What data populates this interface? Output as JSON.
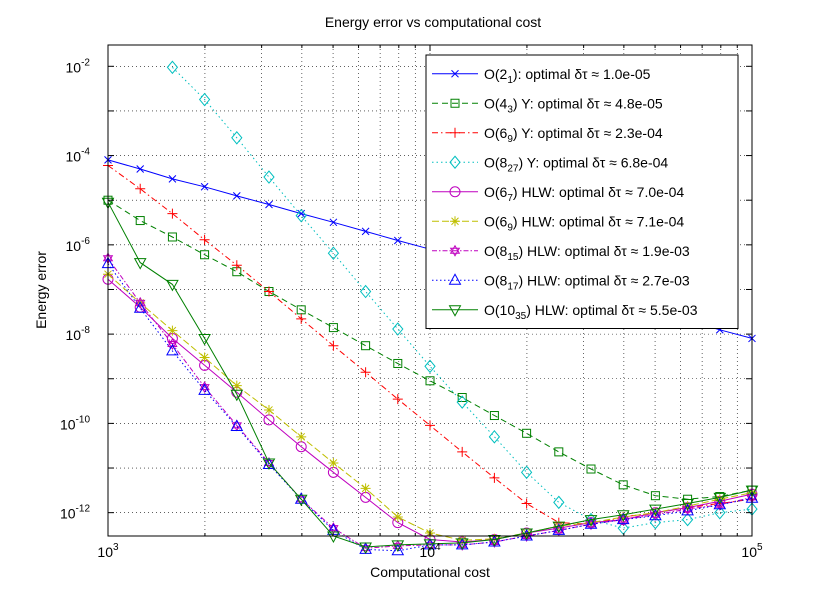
{
  "chart_data": {
    "type": "line",
    "title": "Energy error vs computational cost",
    "xlabel": "Computational cost",
    "ylabel": "Energy error",
    "xscale": "log",
    "yscale": "log",
    "xlim": [
      1000,
      100000
    ],
    "ylim": [
      3e-13,
      0.03
    ],
    "grid": true,
    "legend_position": "top-right",
    "x_ticks": [
      {
        "value": 1000,
        "base": "10",
        "exp": "3"
      },
      {
        "value": 10000,
        "base": "10",
        "exp": "4"
      },
      {
        "value": 100000,
        "base": "10",
        "exp": "5"
      }
    ],
    "y_ticks": [
      {
        "value": 1e-12,
        "base": "10",
        "exp": "-12"
      },
      {
        "value": 1e-10,
        "base": "10",
        "exp": "-10"
      },
      {
        "value": 1e-08,
        "base": "10",
        "exp": "-8"
      },
      {
        "value": 1e-06,
        "base": "10",
        "exp": "-6"
      },
      {
        "value": 0.0001,
        "base": "10",
        "exp": "-4"
      },
      {
        "value": 0.01,
        "base": "10",
        "exp": "-2"
      }
    ],
    "x": [
      1000,
      1259,
      1585,
      1995,
      2512,
      3162,
      3981,
      5012,
      6310,
      7943,
      10000,
      12589,
      15849,
      19953,
      25119,
      31623,
      39811,
      50119,
      63096,
      79433,
      100000
    ],
    "series": [
      {
        "name": "O(2_1)",
        "method": "O(2",
        "sub": "1",
        "suffix": ")",
        "legend_rest": ": optimal δτ ≈ 1.0e-05",
        "color": "#0000ff",
        "dash": "",
        "marker": "x",
        "values": [
          8e-05,
          5e-05,
          3e-05,
          2e-05,
          1.25e-05,
          8e-06,
          5e-06,
          3.2e-06,
          2e-06,
          1.25e-06,
          8e-07,
          5e-07,
          3.2e-07,
          2e-07,
          1.25e-07,
          8e-08,
          5e-08,
          3.2e-08,
          2e-08,
          1.25e-08,
          8e-09
        ]
      },
      {
        "name": "O(4_3) Y",
        "method": "O(4",
        "sub": "3",
        "suffix": ") Y",
        "legend_rest": ": optimal δτ ≈ 4.8e-05",
        "color": "#008000",
        "dash": "6,4",
        "marker": "square",
        "values": [
          1e-05,
          3.5e-06,
          1.5e-06,
          6e-07,
          2.5e-07,
          9e-08,
          3.5e-08,
          1.4e-08,
          5.5e-09,
          2.2e-09,
          9e-10,
          3.8e-10,
          1.5e-10,
          6e-11,
          2.3e-11,
          9.5e-12,
          4.2e-12,
          2.4e-12,
          2e-12,
          2.3e-12,
          3.2e-12
        ]
      },
      {
        "name": "O(6_9) Y",
        "method": "O(6",
        "sub": "9",
        "suffix": ") Y",
        "legend_rest": ": optimal δτ ≈ 2.3e-04",
        "color": "#ff0000",
        "dash": "6,3,1.5,3",
        "marker": "plus",
        "values": [
          6e-05,
          1.8e-05,
          5e-06,
          1.3e-06,
          3.5e-07,
          9e-08,
          2.2e-08,
          5.5e-09,
          1.4e-09,
          3.5e-10,
          9e-11,
          2.3e-11,
          6e-12,
          1.6e-12,
          6e-13,
          5.5e-13,
          8e-13,
          1e-12,
          1.3e-12,
          1.6e-12,
          2e-12
        ]
      },
      {
        "name": "O(8_27) Y",
        "method": "O(8",
        "sub": "27",
        "suffix": ") Y",
        "legend_rest": ": optimal δτ ≈ 6.8e-04",
        "color": "#00bfbf",
        "dash": "1.5,3",
        "marker": "diamond",
        "values": [
          null,
          null,
          0.0095,
          0.0018,
          0.00025,
          3.3e-05,
          4.5e-06,
          6.5e-07,
          9e-08,
          1.3e-08,
          1.9e-09,
          3e-10,
          5e-11,
          8e-12,
          1.7e-12,
          7e-13,
          4.5e-13,
          6e-13,
          7e-13,
          1e-12,
          1.2e-12
        ]
      },
      {
        "name": "O(6_7) HLW",
        "method": "O(6",
        "sub": "7",
        "suffix": ") HLW",
        "legend_rest": ": optimal δτ ≈ 7.0e-04",
        "color": "#bf00bf",
        "dash": "",
        "marker": "circle",
        "values": [
          1.7e-07,
          4e-08,
          8e-09,
          2e-09,
          5e-10,
          1.2e-10,
          3e-11,
          8e-12,
          2.2e-12,
          6e-13,
          2.5e-13,
          2.2e-13,
          2.5e-13,
          3.5e-13,
          4.5e-13,
          6e-13,
          7e-13,
          1e-12,
          1.3e-12,
          1.8e-12,
          2.6e-12
        ]
      },
      {
        "name": "O(6_9) HLW",
        "method": "O(6",
        "sub": "9",
        "suffix": ") HLW",
        "legend_rest": ": optimal δτ ≈ 7.1e-04",
        "color": "#bfbf00",
        "dash": "7,3",
        "marker": "star",
        "values": [
          2.2e-07,
          5e-08,
          1.2e-08,
          3e-09,
          7e-10,
          2e-10,
          5e-11,
          1.3e-11,
          3.5e-12,
          8e-13,
          3.5e-13,
          2.4e-13,
          2.6e-13,
          3.5e-13,
          5e-13,
          6e-13,
          8e-13,
          1e-12,
          1.4e-12,
          2e-12,
          2.8e-12
        ]
      },
      {
        "name": "O(8_15) HLW",
        "method": "O(8",
        "sub": "15",
        "suffix": ") HLW",
        "legend_rest": ": optimal δτ ≈ 1.9e-03",
        "color": "#bf00bf",
        "dash": "5,2,1.5,2",
        "marker": "hexagram",
        "values": [
          5e-07,
          5e-08,
          6e-09,
          6.5e-10,
          9e-11,
          1.3e-11,
          2e-12,
          4.5e-13,
          1.6e-13,
          1.8e-13,
          1.9e-13,
          1.9e-13,
          2.2e-13,
          3e-13,
          4e-13,
          5.5e-13,
          7e-13,
          9e-13,
          1.2e-12,
          1.5e-12,
          2.2e-12
        ]
      },
      {
        "name": "O(8_17) HLW",
        "method": "O(8",
        "sub": "17",
        "suffix": ") HLW",
        "legend_rest": ": optimal δτ ≈ 2.7e-03",
        "color": "#0000ff",
        "dash": "1.5,2.5",
        "marker": "triangle-up",
        "values": [
          3.8e-07,
          3.8e-08,
          4.2e-09,
          5.5e-10,
          8.5e-11,
          1.2e-11,
          2e-12,
          4e-13,
          1.5e-13,
          1.4e-13,
          1.9e-13,
          1.9e-13,
          2.2e-13,
          3e-13,
          4e-13,
          5.5e-13,
          7e-13,
          8.5e-13,
          1.1e-12,
          1.5e-12,
          2.1e-12
        ]
      },
      {
        "name": "O(10_35) HLW",
        "method": "O(10",
        "sub": "35",
        "suffix": ") HLW",
        "legend_rest": ": optimal δτ ≈ 5.5e-03",
        "color": "#008000",
        "dash": "",
        "marker": "triangle-down",
        "values": [
          9e-06,
          4e-07,
          1.3e-07,
          8e-09,
          4.5e-10,
          1.3e-11,
          2e-12,
          3e-13,
          1.7e-13,
          1.9e-13,
          2e-13,
          2.1e-13,
          2.5e-13,
          3.5e-13,
          5e-13,
          7e-13,
          9e-13,
          1.2e-12,
          1.6e-12,
          2.2e-12,
          3.2e-12
        ]
      }
    ]
  }
}
